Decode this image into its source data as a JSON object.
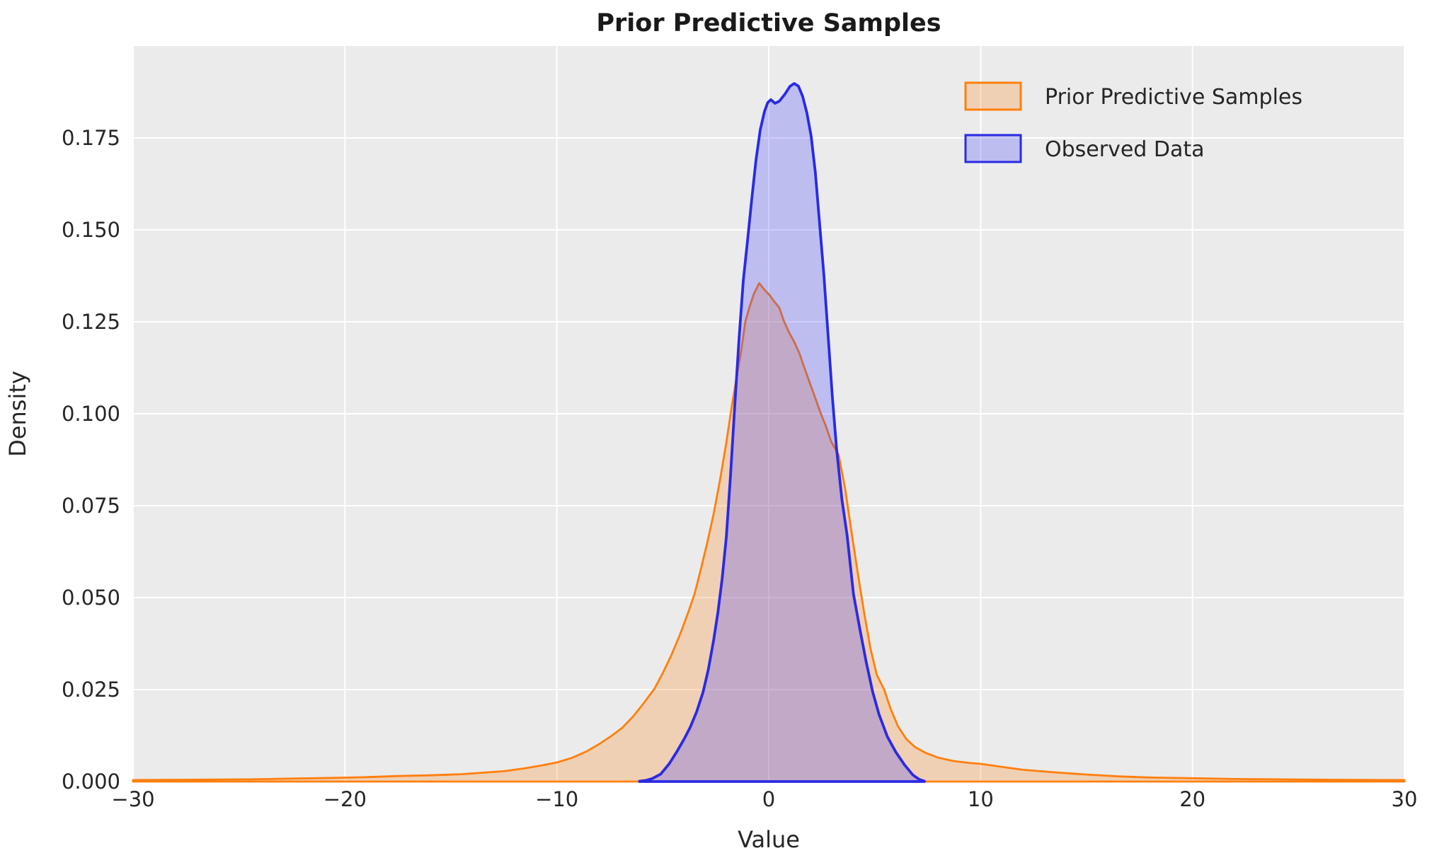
{
  "colors": {
    "figure_background": "#ffffff",
    "axes_background": "#EBEBEB",
    "grid": "#ffffff",
    "text": "#262626",
    "title": "#1a1a1a",
    "orange_line": "#FF7F0E",
    "orange_fill": "#FF7F0E",
    "blue_line": "#2A2AE4",
    "blue_fill": "#3333FF"
  },
  "chart_data": {
    "type": "area",
    "subtype": "kde-density",
    "title": "Prior Predictive Samples",
    "xlabel": "Value",
    "ylabel": "Density",
    "xlim": [
      -30,
      30
    ],
    "ylim": [
      0,
      0.2
    ],
    "grid": true,
    "xticks": {
      "values": [
        -30,
        -20,
        -10,
        0,
        10,
        20,
        30
      ],
      "labels": [
        "−30",
        "−20",
        "−10",
        "0",
        "10",
        "20",
        "30"
      ]
    },
    "yticks": {
      "values": [
        0,
        0.025,
        0.05,
        0.075,
        0.1,
        0.125,
        0.15,
        0.175
      ],
      "labels": [
        "0.000",
        "0.025",
        "0.050",
        "0.075",
        "0.100",
        "0.125",
        "0.150",
        "0.175"
      ]
    },
    "legend": {
      "position": "upper right",
      "entries": [
        {
          "label": "Prior Predictive Samples",
          "line_color": "#FF7F0E",
          "fill_color": "#FF7F0E",
          "fill_opacity": 0.25
        },
        {
          "label": "Observed Data",
          "line_color": "#2A2AE4",
          "fill_color": "#3333FF",
          "fill_opacity": 0.25
        }
      ]
    },
    "series": [
      {
        "name": "Prior Predictive Samples",
        "line_color": "#FF7F0E",
        "fill_color": "#FF7F0E",
        "fill_opacity": 0.25,
        "line_width": 2.8,
        "peak": {
          "x": -0.45,
          "density": 0.1355
        },
        "points": [
          [
            -30,
            0.0004
          ],
          [
            -27,
            0.0005
          ],
          [
            -24.5,
            0.0006
          ],
          [
            -22.5,
            0.0008
          ],
          [
            -20.5,
            0.001
          ],
          [
            -19,
            0.0012
          ],
          [
            -17.5,
            0.0015
          ],
          [
            -16,
            0.0017
          ],
          [
            -14.5,
            0.002
          ],
          [
            -13.5,
            0.0024
          ],
          [
            -12.5,
            0.0028
          ],
          [
            -11.5,
            0.0036
          ],
          [
            -10.7,
            0.0044
          ],
          [
            -10,
            0.0052
          ],
          [
            -9.3,
            0.0064
          ],
          [
            -8.6,
            0.0082
          ],
          [
            -8,
            0.0102
          ],
          [
            -7.4,
            0.0125
          ],
          [
            -6.9,
            0.0147
          ],
          [
            -6.4,
            0.0177
          ],
          [
            -5.9,
            0.0213
          ],
          [
            -5.4,
            0.0252
          ],
          [
            -5,
            0.0295
          ],
          [
            -4.6,
            0.0343
          ],
          [
            -4.2,
            0.0398
          ],
          [
            -3.8,
            0.046
          ],
          [
            -3.5,
            0.051
          ],
          [
            -3.2,
            0.0578
          ],
          [
            -2.9,
            0.065
          ],
          [
            -2.6,
            0.0728
          ],
          [
            -2.3,
            0.082
          ],
          [
            -2,
            0.0922
          ],
          [
            -1.75,
            0.1018
          ],
          [
            -1.5,
            0.1105
          ],
          [
            -1.3,
            0.1172
          ],
          [
            -1.1,
            0.1252
          ],
          [
            -0.9,
            0.1292
          ],
          [
            -0.7,
            0.1326
          ],
          [
            -0.45,
            0.1355
          ],
          [
            -0.2,
            0.1337
          ],
          [
            0.05,
            0.1322
          ],
          [
            0.25,
            0.1306
          ],
          [
            0.5,
            0.1288
          ],
          [
            0.7,
            0.1254
          ],
          [
            0.95,
            0.1222
          ],
          [
            1.2,
            0.1196
          ],
          [
            1.45,
            0.1164
          ],
          [
            1.7,
            0.1122
          ],
          [
            1.95,
            0.1082
          ],
          [
            2.2,
            0.1042
          ],
          [
            2.45,
            0.1002
          ],
          [
            2.7,
            0.0966
          ],
          [
            2.95,
            0.0924
          ],
          [
            3.3,
            0.0888
          ],
          [
            3.6,
            0.0798
          ],
          [
            3.9,
            0.0682
          ],
          [
            4.2,
            0.0568
          ],
          [
            4.5,
            0.046
          ],
          [
            4.8,
            0.0362
          ],
          [
            5.1,
            0.029
          ],
          [
            5.45,
            0.025
          ],
          [
            5.75,
            0.0198
          ],
          [
            6.1,
            0.015
          ],
          [
            6.5,
            0.0115
          ],
          [
            6.9,
            0.0094
          ],
          [
            7.4,
            0.0078
          ],
          [
            8,
            0.0065
          ],
          [
            8.7,
            0.0056
          ],
          [
            9.4,
            0.0051
          ],
          [
            10,
            0.0048
          ],
          [
            11,
            0.004
          ],
          [
            12,
            0.0032
          ],
          [
            13.5,
            0.0025
          ],
          [
            15,
            0.0019
          ],
          [
            16.5,
            0.0014
          ],
          [
            18,
            0.0011
          ],
          [
            20,
            0.0009
          ],
          [
            22,
            0.0007
          ],
          [
            25,
            0.00055
          ],
          [
            27.5,
            0.00045
          ],
          [
            30,
            0.0004
          ]
        ]
      },
      {
        "name": "Observed Data",
        "line_color": "#2A2AE4",
        "fill_color": "#3333FF",
        "fill_opacity": 0.25,
        "line_width": 3.8,
        "peak": {
          "x": 1.2,
          "density": 0.1898
        },
        "points": [
          [
            -6.1,
            0.0001
          ],
          [
            -5.8,
            0.0003
          ],
          [
            -5.5,
            0.0008
          ],
          [
            -5.1,
            0.002
          ],
          [
            -4.7,
            0.0048
          ],
          [
            -4.35,
            0.008
          ],
          [
            -4,
            0.0115
          ],
          [
            -3.7,
            0.0148
          ],
          [
            -3.4,
            0.019
          ],
          [
            -3.1,
            0.0243
          ],
          [
            -2.85,
            0.0305
          ],
          [
            -2.6,
            0.0385
          ],
          [
            -2.4,
            0.046
          ],
          [
            -2.2,
            0.055
          ],
          [
            -2,
            0.0665
          ],
          [
            -1.8,
            0.0835
          ],
          [
            -1.6,
            0.1025
          ],
          [
            -1.4,
            0.1205
          ],
          [
            -1.2,
            0.1363
          ],
          [
            -1,
            0.1472
          ],
          [
            -0.8,
            0.1585
          ],
          [
            -0.6,
            0.169
          ],
          [
            -0.4,
            0.1772
          ],
          [
            -0.2,
            0.1822
          ],
          [
            -0.05,
            0.1846
          ],
          [
            0.1,
            0.1854
          ],
          [
            0.3,
            0.1844
          ],
          [
            0.5,
            0.185
          ],
          [
            0.75,
            0.1868
          ],
          [
            1,
            0.189
          ],
          [
            1.2,
            0.1898
          ],
          [
            1.4,
            0.1891
          ],
          [
            1.6,
            0.1863
          ],
          [
            1.8,
            0.1818
          ],
          [
            2,
            0.1755
          ],
          [
            2.2,
            0.1655
          ],
          [
            2.4,
            0.1518
          ],
          [
            2.6,
            0.138
          ],
          [
            2.8,
            0.1215
          ],
          [
            3,
            0.1048
          ],
          [
            3.2,
            0.0905
          ],
          [
            3.45,
            0.0768
          ],
          [
            3.7,
            0.0668
          ],
          [
            4,
            0.051
          ],
          [
            4.3,
            0.0415
          ],
          [
            4.6,
            0.0325
          ],
          [
            4.9,
            0.0245
          ],
          [
            5.2,
            0.0183
          ],
          [
            5.6,
            0.0122
          ],
          [
            6,
            0.008
          ],
          [
            6.4,
            0.0046
          ],
          [
            6.8,
            0.0018
          ],
          [
            7.1,
            0.0006
          ],
          [
            7.35,
            0.0001
          ]
        ]
      }
    ]
  }
}
